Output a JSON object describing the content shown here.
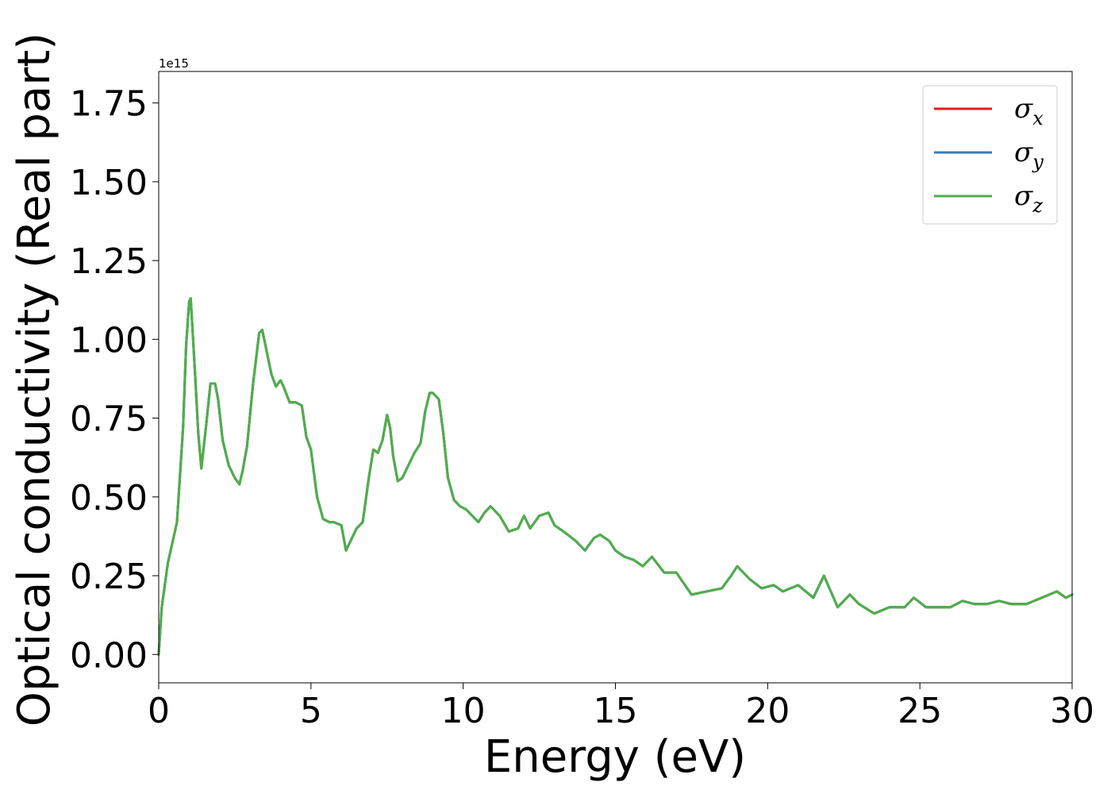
{
  "chart_data": {
    "type": "line",
    "xlabel": "Energy (eV)",
    "ylabel": "Optical conductivity (Real part)",
    "y_offset_label": "1e15",
    "xlim": [
      0,
      30
    ],
    "ylim": [
      -0.09,
      1.85
    ],
    "x_ticks": [
      0,
      5,
      10,
      15,
      20,
      25,
      30
    ],
    "x_tick_labels": [
      "0",
      "5",
      "10",
      "15",
      "20",
      "25",
      "30"
    ],
    "y_ticks": [
      0.0,
      0.25,
      0.5,
      0.75,
      1.0,
      1.25,
      1.5,
      1.75
    ],
    "y_tick_labels": [
      "0.00",
      "0.25",
      "0.50",
      "0.75",
      "1.00",
      "1.25",
      "1.50",
      "1.75"
    ],
    "grid": false,
    "legend_position": "top-right",
    "legend": [
      {
        "symbol": "σ",
        "sub": "x",
        "color": "#e41a1c"
      },
      {
        "symbol": "σ",
        "sub": "y",
        "color": "#377eb8"
      },
      {
        "symbol": "σ",
        "sub": "z",
        "color": "#4daf4a"
      }
    ],
    "x": [
      0.0,
      0.1,
      0.3,
      0.6,
      0.8,
      0.9,
      1.0,
      1.05,
      1.1,
      1.2,
      1.3,
      1.4,
      1.55,
      1.7,
      1.85,
      1.95,
      2.1,
      2.3,
      2.5,
      2.65,
      2.75,
      2.9,
      3.1,
      3.3,
      3.4,
      3.55,
      3.7,
      3.85,
      4.0,
      4.1,
      4.3,
      4.5,
      4.7,
      4.85,
      5.0,
      5.2,
      5.4,
      5.6,
      5.75,
      6.0,
      6.15,
      6.3,
      6.5,
      6.7,
      6.9,
      7.05,
      7.2,
      7.35,
      7.5,
      7.6,
      7.7,
      7.85,
      8.0,
      8.2,
      8.4,
      8.6,
      8.75,
      8.9,
      9.0,
      9.2,
      9.35,
      9.5,
      9.7,
      9.9,
      10.1,
      10.3,
      10.5,
      10.7,
      10.9,
      11.2,
      11.5,
      11.8,
      12.0,
      12.2,
      12.5,
      12.8,
      13.0,
      13.3,
      13.7,
      14.0,
      14.3,
      14.5,
      14.8,
      15.0,
      15.3,
      15.6,
      15.9,
      16.2,
      16.6,
      17.0,
      17.5,
      18.0,
      18.5,
      18.8,
      19.0,
      19.4,
      19.8,
      20.2,
      20.5,
      21.0,
      21.5,
      21.85,
      22.3,
      22.7,
      23.0,
      23.5,
      24.0,
      24.5,
      24.8,
      25.2,
      25.6,
      26.0,
      26.4,
      26.8,
      27.2,
      27.6,
      28.0,
      28.5,
      29.0,
      29.5,
      29.8,
      30.0
    ],
    "series": [
      {
        "name": "σx",
        "color": "#e41a1c",
        "values": [
          0.0,
          0.15,
          0.29,
          0.42,
          0.72,
          0.98,
          1.12,
          1.13,
          1.05,
          0.88,
          0.7,
          0.59,
          0.72,
          0.86,
          0.86,
          0.81,
          0.68,
          0.6,
          0.56,
          0.54,
          0.58,
          0.66,
          0.86,
          1.02,
          1.03,
          0.96,
          0.89,
          0.85,
          0.87,
          0.85,
          0.8,
          0.8,
          0.79,
          0.69,
          0.65,
          0.5,
          0.43,
          0.42,
          0.42,
          0.41,
          0.33,
          0.36,
          0.4,
          0.42,
          0.56,
          0.65,
          0.64,
          0.68,
          0.76,
          0.72,
          0.63,
          0.55,
          0.56,
          0.6,
          0.64,
          0.67,
          0.77,
          0.83,
          0.83,
          0.81,
          0.7,
          0.56,
          0.49,
          0.47,
          0.46,
          0.44,
          0.42,
          0.45,
          0.47,
          0.44,
          0.39,
          0.4,
          0.44,
          0.4,
          0.44,
          0.45,
          0.41,
          0.39,
          0.36,
          0.33,
          0.37,
          0.38,
          0.36,
          0.33,
          0.31,
          0.3,
          0.28,
          0.31,
          0.26,
          0.26,
          0.19,
          0.2,
          0.21,
          0.25,
          0.28,
          0.24,
          0.21,
          0.22,
          0.2,
          0.22,
          0.18,
          0.25,
          0.15,
          0.19,
          0.16,
          0.13,
          0.15,
          0.15,
          0.18,
          0.15,
          0.15,
          0.15,
          0.17,
          0.16,
          0.16,
          0.17,
          0.16,
          0.16,
          0.18,
          0.2,
          0.18,
          0.19
        ]
      },
      {
        "name": "σy",
        "color": "#377eb8",
        "values": [
          0.0,
          0.15,
          0.29,
          0.42,
          0.72,
          0.98,
          1.12,
          1.13,
          1.05,
          0.88,
          0.7,
          0.59,
          0.72,
          0.86,
          0.86,
          0.81,
          0.68,
          0.6,
          0.56,
          0.54,
          0.58,
          0.66,
          0.86,
          1.02,
          1.03,
          0.96,
          0.89,
          0.85,
          0.87,
          0.85,
          0.8,
          0.8,
          0.79,
          0.69,
          0.65,
          0.5,
          0.43,
          0.42,
          0.42,
          0.41,
          0.33,
          0.36,
          0.4,
          0.42,
          0.56,
          0.65,
          0.64,
          0.68,
          0.76,
          0.72,
          0.63,
          0.55,
          0.56,
          0.6,
          0.64,
          0.67,
          0.77,
          0.83,
          0.83,
          0.81,
          0.7,
          0.56,
          0.49,
          0.47,
          0.46,
          0.44,
          0.42,
          0.45,
          0.47,
          0.44,
          0.39,
          0.4,
          0.44,
          0.4,
          0.44,
          0.45,
          0.41,
          0.39,
          0.36,
          0.33,
          0.37,
          0.38,
          0.36,
          0.33,
          0.31,
          0.3,
          0.28,
          0.31,
          0.26,
          0.26,
          0.19,
          0.2,
          0.21,
          0.25,
          0.28,
          0.24,
          0.21,
          0.22,
          0.2,
          0.22,
          0.18,
          0.25,
          0.15,
          0.19,
          0.16,
          0.13,
          0.15,
          0.15,
          0.18,
          0.15,
          0.15,
          0.15,
          0.17,
          0.16,
          0.16,
          0.17,
          0.16,
          0.16,
          0.18,
          0.2,
          0.18,
          0.19
        ]
      },
      {
        "name": "σz",
        "color": "#4daf4a",
        "values": [
          0.0,
          0.15,
          0.29,
          0.42,
          0.72,
          0.98,
          1.12,
          1.13,
          1.05,
          0.88,
          0.7,
          0.59,
          0.72,
          0.86,
          0.86,
          0.81,
          0.68,
          0.6,
          0.56,
          0.54,
          0.58,
          0.66,
          0.86,
          1.02,
          1.03,
          0.96,
          0.89,
          0.85,
          0.87,
          0.85,
          0.8,
          0.8,
          0.79,
          0.69,
          0.65,
          0.5,
          0.43,
          0.42,
          0.42,
          0.41,
          0.33,
          0.36,
          0.4,
          0.42,
          0.56,
          0.65,
          0.64,
          0.68,
          0.76,
          0.72,
          0.63,
          0.55,
          0.56,
          0.6,
          0.64,
          0.67,
          0.77,
          0.83,
          0.83,
          0.81,
          0.7,
          0.56,
          0.49,
          0.47,
          0.46,
          0.44,
          0.42,
          0.45,
          0.47,
          0.44,
          0.39,
          0.4,
          0.44,
          0.4,
          0.44,
          0.45,
          0.41,
          0.39,
          0.36,
          0.33,
          0.37,
          0.38,
          0.36,
          0.33,
          0.31,
          0.3,
          0.28,
          0.31,
          0.26,
          0.26,
          0.19,
          0.2,
          0.21,
          0.25,
          0.28,
          0.24,
          0.21,
          0.22,
          0.2,
          0.22,
          0.18,
          0.25,
          0.15,
          0.19,
          0.16,
          0.13,
          0.15,
          0.15,
          0.18,
          0.15,
          0.15,
          0.15,
          0.17,
          0.16,
          0.16,
          0.17,
          0.16,
          0.16,
          0.18,
          0.2,
          0.18,
          0.19
        ]
      }
    ]
  }
}
